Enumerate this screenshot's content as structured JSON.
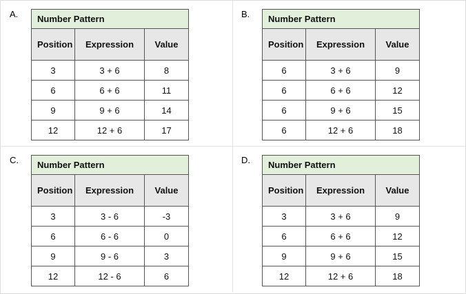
{
  "options": [
    {
      "label": "A.",
      "title": "Number Pattern",
      "headers": [
        "Position",
        "Expression",
        "Value"
      ],
      "rows": [
        [
          "3",
          "3 + 6",
          "8"
        ],
        [
          "6",
          "6 + 6",
          "11"
        ],
        [
          "9",
          "9 + 6",
          "14"
        ],
        [
          "12",
          "12 + 6",
          "17"
        ]
      ]
    },
    {
      "label": "B.",
      "title": "Number Pattern",
      "headers": [
        "Position",
        "Expression",
        "Value"
      ],
      "rows": [
        [
          "6",
          "3 + 6",
          "9"
        ],
        [
          "6",
          "6 + 6",
          "12"
        ],
        [
          "6",
          "9 + 6",
          "15"
        ],
        [
          "6",
          "12 + 6",
          "18"
        ]
      ]
    },
    {
      "label": "C.",
      "title": "Number Pattern",
      "headers": [
        "Position",
        "Expression",
        "Value"
      ],
      "rows": [
        [
          "3",
          "3 - 6",
          "-3"
        ],
        [
          "6",
          "6 - 6",
          "0"
        ],
        [
          "9",
          "9 - 6",
          "3"
        ],
        [
          "12",
          "12 - 6",
          "6"
        ]
      ]
    },
    {
      "label": "D.",
      "title": "Number Pattern",
      "headers": [
        "Position",
        "Expression",
        "Value"
      ],
      "rows": [
        [
          "3",
          "3 + 6",
          "9"
        ],
        [
          "6",
          "6 + 6",
          "12"
        ],
        [
          "9",
          "9 + 6",
          "15"
        ],
        [
          "12",
          "12 + 6",
          "18"
        ]
      ]
    }
  ]
}
